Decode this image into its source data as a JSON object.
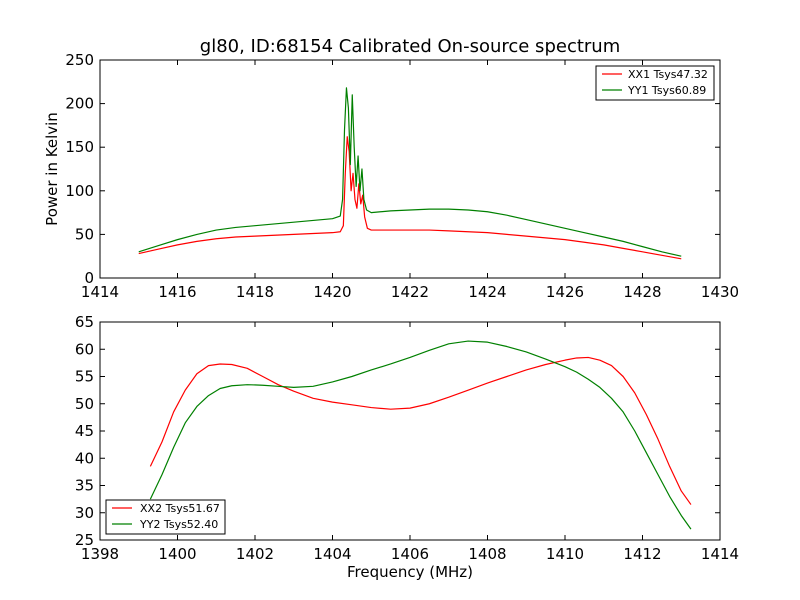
{
  "chart_data": [
    {
      "type": "line",
      "title": "gl80, ID:68154 Calibrated On-source spectrum",
      "xlabel": "",
      "ylabel": "Power in Kelvin",
      "xlim": [
        1414,
        1430
      ],
      "ylim": [
        0,
        250
      ],
      "xticks": [
        "1414",
        "1416",
        "1418",
        "1420",
        "1422",
        "1424",
        "1426",
        "1428",
        "1430"
      ],
      "yticks": [
        "0",
        "50",
        "100",
        "150",
        "200",
        "250"
      ],
      "legend_position": "top-right",
      "grid": false,
      "series": [
        {
          "name": "XX1 Tsys47.32",
          "color": "#ff0000",
          "x": [
            1415.0,
            1415.5,
            1416.0,
            1416.5,
            1417.0,
            1417.5,
            1418.0,
            1418.5,
            1419.0,
            1419.5,
            1420.0,
            1420.2,
            1420.28,
            1420.33,
            1420.38,
            1420.43,
            1420.48,
            1420.53,
            1420.58,
            1420.63,
            1420.68,
            1420.73,
            1420.78,
            1420.83,
            1420.9,
            1421.0,
            1421.5,
            1422.0,
            1422.5,
            1423.0,
            1423.5,
            1424.0,
            1424.5,
            1425.0,
            1425.5,
            1426.0,
            1426.5,
            1427.0,
            1427.5,
            1428.0,
            1428.5,
            1429.0
          ],
          "y": [
            28,
            33,
            38,
            42,
            45,
            47,
            48,
            49,
            50,
            51,
            52,
            53,
            60,
            120,
            162,
            145,
            100,
            120,
            90,
            80,
            108,
            85,
            95,
            70,
            57,
            55,
            55,
            55,
            55,
            54,
            53,
            52,
            50,
            48,
            46,
            44,
            41,
            38,
            34,
            30,
            26,
            22
          ]
        },
        {
          "name": "YY1 Tsys60.89",
          "color": "#008000",
          "x": [
            1415.0,
            1415.5,
            1416.0,
            1416.5,
            1417.0,
            1417.5,
            1418.0,
            1418.5,
            1419.0,
            1419.5,
            1420.0,
            1420.2,
            1420.26,
            1420.31,
            1420.36,
            1420.41,
            1420.46,
            1420.51,
            1420.56,
            1420.61,
            1420.66,
            1420.71,
            1420.76,
            1420.81,
            1420.88,
            1421.0,
            1421.5,
            1422.0,
            1422.5,
            1423.0,
            1423.5,
            1424.0,
            1424.5,
            1425.0,
            1425.5,
            1426.0,
            1426.5,
            1427.0,
            1427.5,
            1428.0,
            1428.5,
            1429.0
          ],
          "y": [
            30,
            37,
            44,
            50,
            55,
            58,
            60,
            62,
            64,
            66,
            68,
            71,
            90,
            170,
            218,
            195,
            130,
            210,
            150,
            105,
            140,
            100,
            125,
            90,
            78,
            75,
            77,
            78,
            79,
            79,
            78,
            76,
            72,
            67,
            62,
            57,
            52,
            47,
            42,
            36,
            30,
            25
          ]
        }
      ]
    },
    {
      "type": "line",
      "title": "",
      "xlabel": "Frequency (MHz)",
      "ylabel": "",
      "xlim": [
        1398,
        1414
      ],
      "ylim": [
        25,
        65
      ],
      "xticks": [
        "1398",
        "1400",
        "1402",
        "1404",
        "1406",
        "1408",
        "1410",
        "1412",
        "1414"
      ],
      "yticks": [
        "25",
        "30",
        "35",
        "40",
        "45",
        "50",
        "55",
        "60",
        "65"
      ],
      "legend_position": "bottom-left",
      "grid": false,
      "series": [
        {
          "name": "XX2 Tsys51.67",
          "color": "#ff0000",
          "x": [
            1399.3,
            1399.6,
            1399.9,
            1400.2,
            1400.5,
            1400.8,
            1401.1,
            1401.4,
            1401.8,
            1402.2,
            1402.6,
            1403.0,
            1403.5,
            1404.0,
            1404.5,
            1405.0,
            1405.5,
            1406.0,
            1406.5,
            1407.0,
            1407.5,
            1408.0,
            1408.5,
            1409.0,
            1409.5,
            1410.0,
            1410.3,
            1410.6,
            1410.9,
            1411.2,
            1411.5,
            1411.8,
            1412.1,
            1412.4,
            1412.7,
            1413.0,
            1413.25
          ],
          "y": [
            38.5,
            43,
            48.5,
            52.5,
            55.5,
            57,
            57.3,
            57.2,
            56.5,
            55,
            53.5,
            52.3,
            51,
            50.3,
            49.8,
            49.3,
            49,
            49.2,
            50,
            51.2,
            52.5,
            53.8,
            55,
            56.2,
            57.2,
            58,
            58.4,
            58.5,
            58,
            57,
            55,
            52,
            48,
            43.5,
            38.5,
            34,
            31.5
          ]
        },
        {
          "name": "YY2 Tsys52.40",
          "color": "#008000",
          "x": [
            1399.3,
            1399.6,
            1399.9,
            1400.2,
            1400.5,
            1400.8,
            1401.1,
            1401.4,
            1401.8,
            1402.2,
            1402.6,
            1403.0,
            1403.5,
            1404.0,
            1404.5,
            1405.0,
            1405.5,
            1406.0,
            1406.5,
            1407.0,
            1407.5,
            1408.0,
            1408.5,
            1409.0,
            1409.5,
            1410.0,
            1410.3,
            1410.6,
            1410.9,
            1411.2,
            1411.5,
            1411.8,
            1412.1,
            1412.4,
            1412.7,
            1413.0,
            1413.25
          ],
          "y": [
            32.5,
            37,
            42,
            46.5,
            49.5,
            51.5,
            52.8,
            53.3,
            53.5,
            53.4,
            53.2,
            53,
            53.2,
            54,
            55,
            56.2,
            57.3,
            58.5,
            59.8,
            61,
            61.5,
            61.3,
            60.5,
            59.5,
            58.2,
            56.8,
            55.8,
            54.5,
            53,
            51,
            48.5,
            45,
            41,
            37,
            33,
            29.5,
            27
          ]
        }
      ]
    }
  ]
}
